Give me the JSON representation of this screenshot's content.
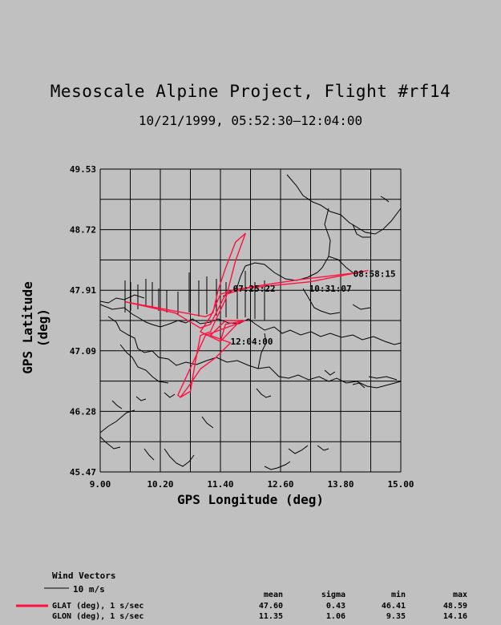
{
  "title": "Mesoscale Alpine Project, Flight #rf14",
  "subtitle": "10/21/1999, 05:52:30–12:04:00",
  "axes": {
    "xlabel": "GPS Longitude (deg)",
    "ylabel": "GPS Latitude (deg)",
    "xticks": [
      "9.00",
      "10.20",
      "11.40",
      "12.60",
      "13.80",
      "15.00"
    ],
    "yticks": [
      "49.53",
      "48.72",
      "47.91",
      "47.09",
      "46.28",
      "45.47"
    ],
    "xlim": [
      9.0,
      15.0
    ],
    "ylim": [
      45.47,
      49.53
    ],
    "grid": true
  },
  "colors": {
    "track": "#ff1040",
    "map": "#000000",
    "background": "#c0c0c0"
  },
  "annotations": [
    {
      "text": "07:25:22",
      "lon": 11.65,
      "lat": 47.93
    },
    {
      "text": "10:31:07",
      "lon": 13.17,
      "lat": 47.93
    },
    {
      "text": "08:58:15",
      "lon": 14.05,
      "lat": 48.13
    },
    {
      "text": "12:04:00",
      "lon": 11.6,
      "lat": 47.22
    }
  ],
  "legend": {
    "wind_title": "Wind Vectors",
    "wind_scale": "10 m/s",
    "stats_headers": [
      "mean",
      "sigma",
      "min",
      "max"
    ],
    "rows": [
      {
        "label": "GLAT (deg), 1 s/sec",
        "mean": "47.60",
        "sigma": "0.43",
        "min": "46.41",
        "max": "48.59"
      },
      {
        "label": "GLON (deg), 1 s/sec",
        "mean": "11.35",
        "sigma": "1.06",
        "min": "9.35",
        "max": "14.16"
      }
    ]
  },
  "chart_data": {
    "type": "line",
    "title": "Mesoscale Alpine Project, Flight #rf14",
    "xlabel": "GPS Longitude (deg)",
    "ylabel": "GPS Latitude (deg)",
    "xlim": [
      9.0,
      15.0
    ],
    "ylim": [
      45.47,
      49.53
    ],
    "series": [
      {
        "name": "GLAT (deg), 1 s/sec",
        "x": [
          10.6,
          10.8,
          10.9,
          11.0,
          11.2,
          11.3,
          11.5,
          11.7,
          11.9,
          11.7,
          11.5,
          11.35,
          11.25,
          11.1,
          9.5,
          10.5,
          11.0,
          11.2,
          11.5,
          12.0,
          13.0,
          14.0,
          14.35,
          13.2,
          11.7,
          11.4,
          11.2,
          11.0,
          11.4,
          11.8,
          11.5,
          11.2,
          11.6,
          11.3,
          11.0,
          10.8,
          10.6,
          10.55,
          11.1,
          11.9,
          11.5,
          11.4
        ],
        "y": [
          46.47,
          46.55,
          46.95,
          47.3,
          47.35,
          47.5,
          47.78,
          48.3,
          48.67,
          48.55,
          48.2,
          47.9,
          47.6,
          47.55,
          47.75,
          47.6,
          47.4,
          47.45,
          47.85,
          47.95,
          48.05,
          48.13,
          48.17,
          48.02,
          47.92,
          47.85,
          47.55,
          47.35,
          47.22,
          47.5,
          47.5,
          47.3,
          47.2,
          47.0,
          46.85,
          46.65,
          46.47,
          46.5,
          47.3,
          47.5,
          47.45,
          47.22
        ]
      }
    ]
  }
}
